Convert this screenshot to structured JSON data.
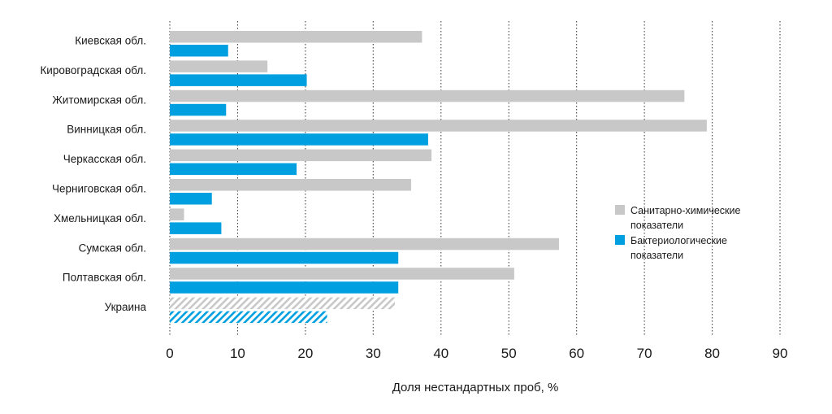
{
  "chart_data": {
    "type": "bar",
    "orientation": "horizontal",
    "categories": [
      "Киевская обл.",
      "Кировоградская обл.",
      "Житомирская обл.",
      "Винницкая обл.",
      "Черкасская обл.",
      "Черниговская обл.",
      "Хмельницкая обл.",
      "Сумская обл.",
      "Полтавская обл.",
      "Украина"
    ],
    "series": [
      {
        "name": "Санитарно-химические показатели",
        "color": "#c8c8c8",
        "values": [
          37.2,
          14.4,
          75.9,
          79.2,
          38.6,
          35.6,
          2.1,
          57.4,
          50.8,
          33.2
        ]
      },
      {
        "name": "Бактериологические показатели",
        "color": "#00a0e0",
        "values": [
          8.6,
          20.2,
          8.3,
          38.1,
          18.7,
          6.2,
          7.6,
          33.7,
          33.7,
          23.2
        ]
      }
    ],
    "hatched_category": "Украина",
    "xlim": [
      0,
      90
    ],
    "xticks": [
      "0",
      "10",
      "20",
      "30",
      "40",
      "50",
      "60",
      "70",
      "80",
      "90"
    ],
    "xlabel": "Доля нестандартных проб, %",
    "grid": "vertical dotted",
    "legend": {
      "position": "right",
      "items": [
        {
          "lines": [
            "Санитарно-химические",
            "показатели"
          ],
          "color": "#c8c8c8"
        },
        {
          "lines": [
            "Бактериологические",
            "показатели"
          ],
          "color": "#00a0e0"
        }
      ]
    }
  }
}
